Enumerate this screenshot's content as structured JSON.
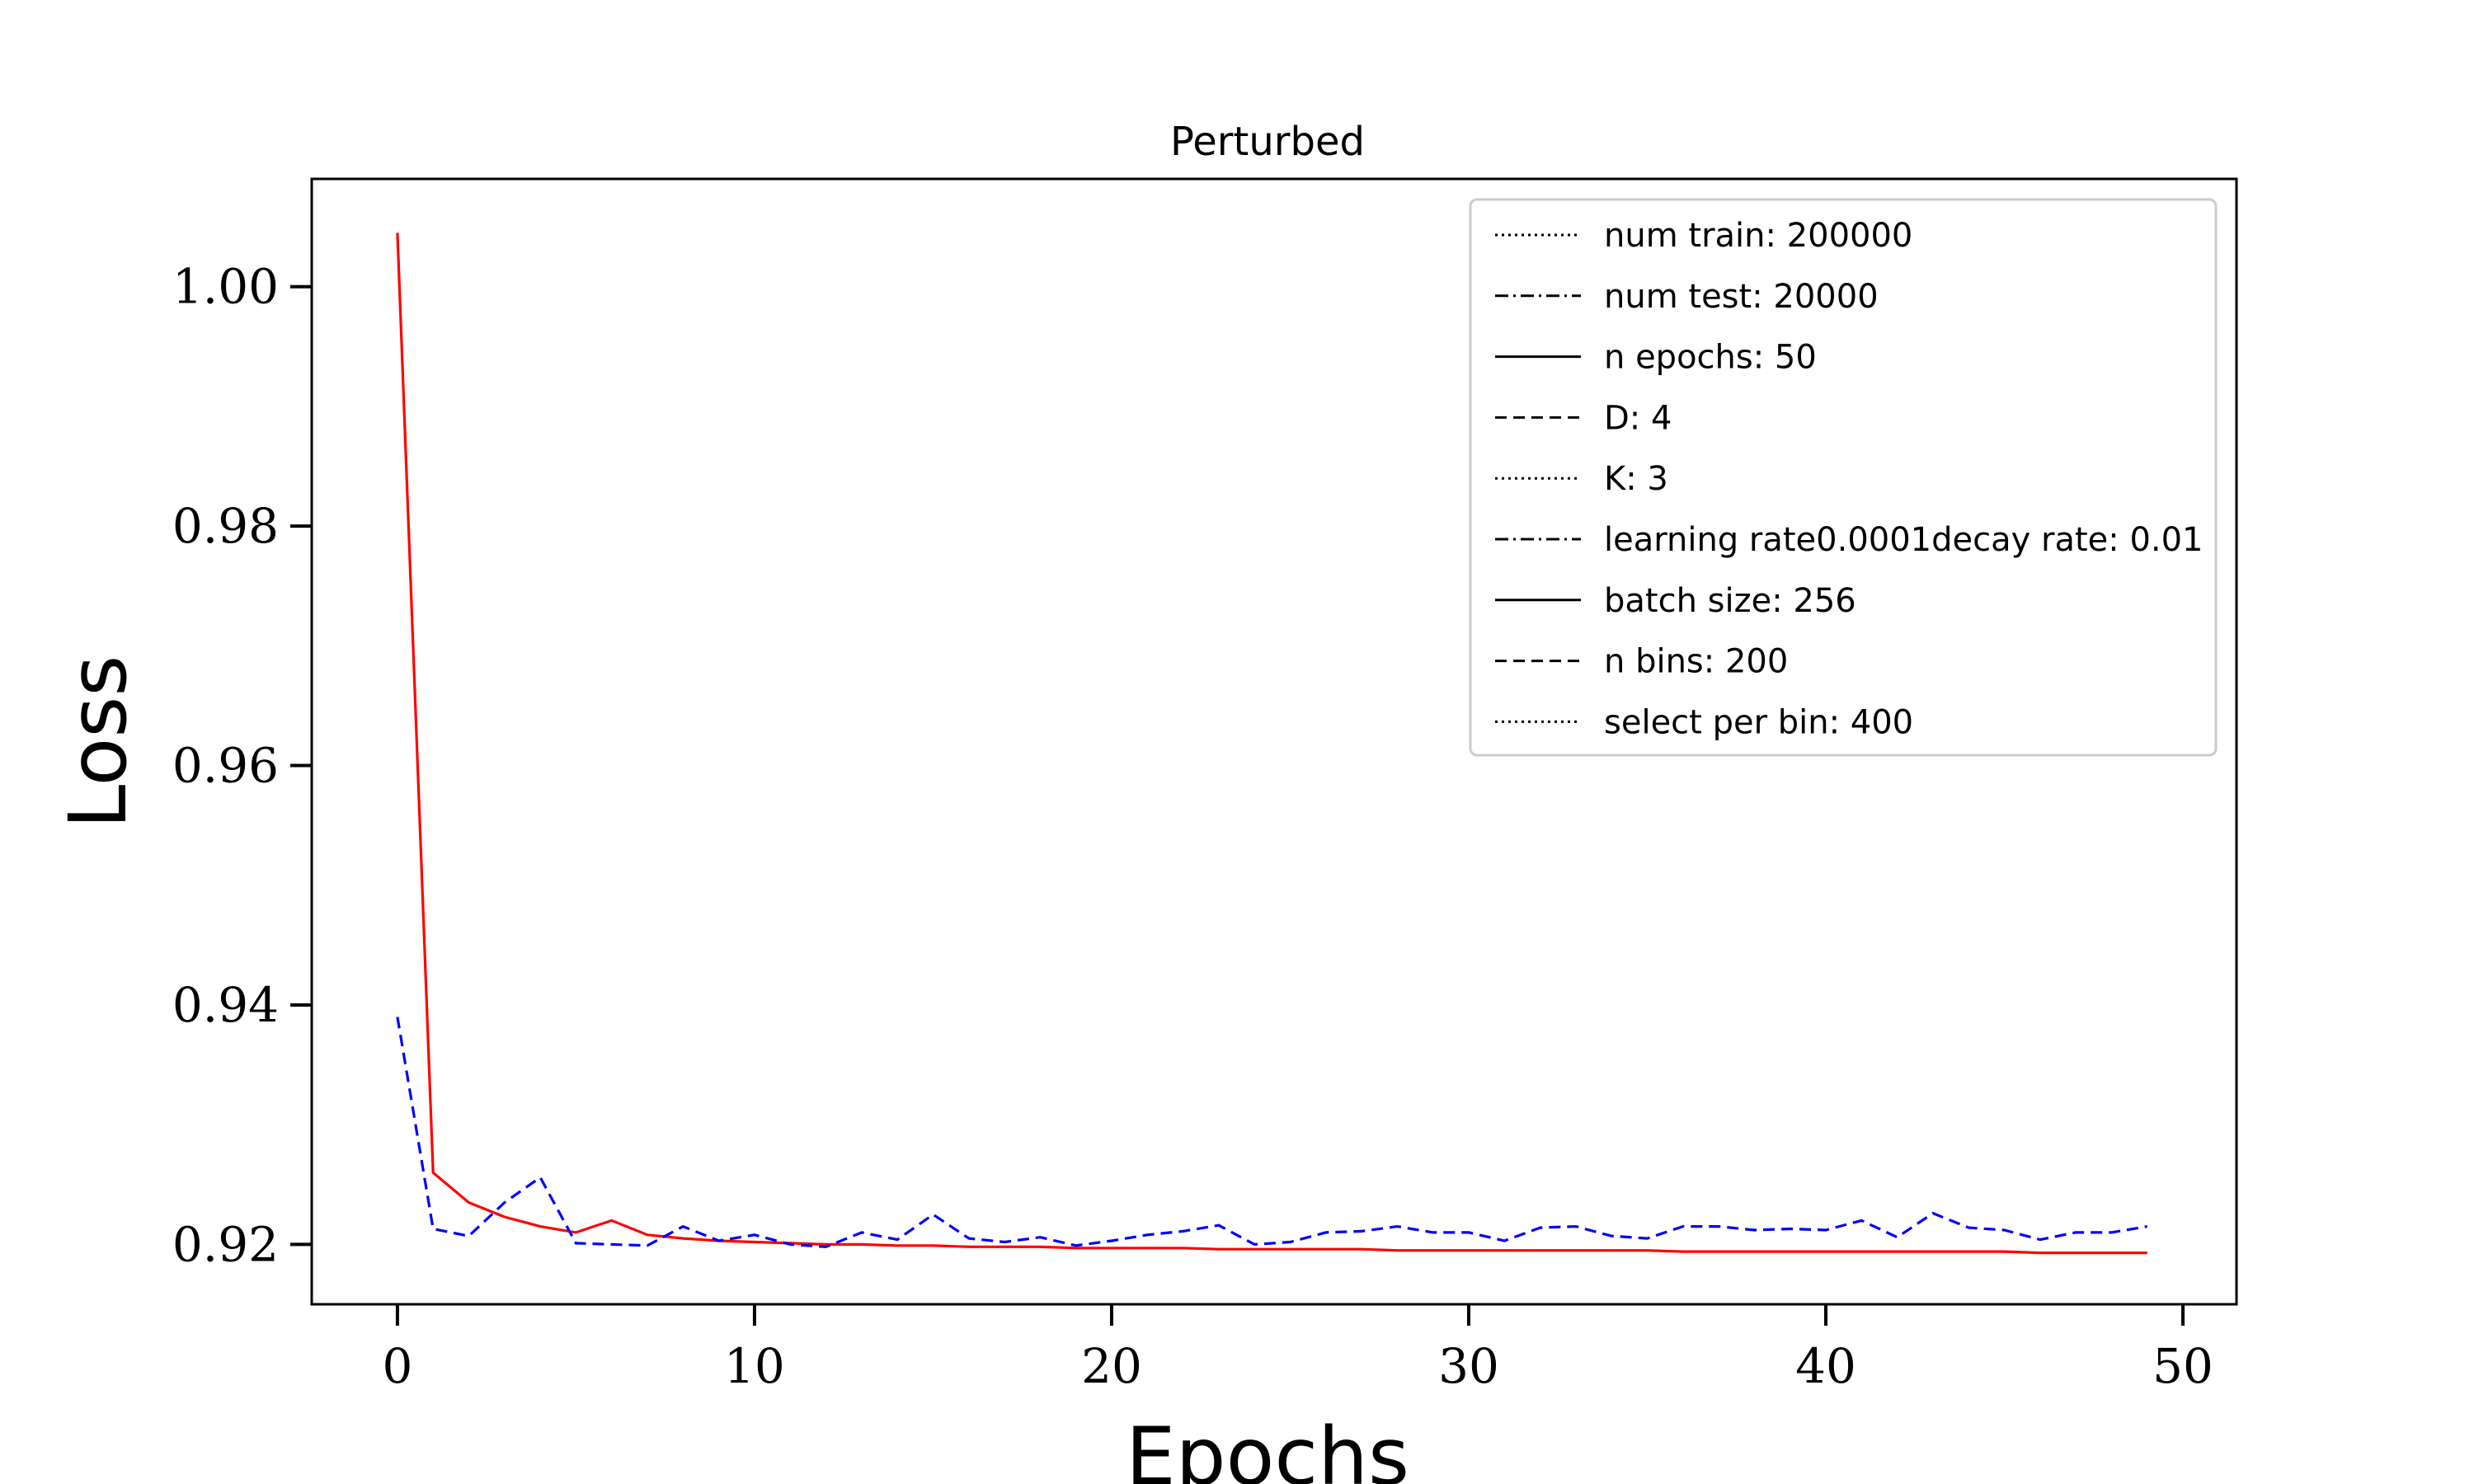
{
  "chart_data": {
    "type": "line",
    "title": "Perturbed",
    "xlabel": "Epochs",
    "ylabel": "Loss",
    "xlim": [
      -2.4,
      51.5
    ],
    "ylim": [
      0.915,
      1.009
    ],
    "xticks": [
      0,
      10,
      20,
      30,
      40,
      50
    ],
    "yticks": [
      0.92,
      0.94,
      0.96,
      0.98,
      1.0
    ],
    "xtick_labels": [
      "0",
      "10",
      "20",
      "30",
      "40",
      "50"
    ],
    "ytick_labels": [
      "0.92",
      "0.94",
      "0.96",
      "0.98",
      "1.00"
    ],
    "grid": false,
    "legend_position": "top-right",
    "series": [
      {
        "color": "#ff0000",
        "style": "solid",
        "x": [
          0,
          1,
          2,
          3,
          4,
          5,
          6,
          7,
          8,
          9,
          10,
          11,
          12,
          13,
          14,
          15,
          16,
          17,
          18,
          19,
          20,
          21,
          22,
          23,
          24,
          25,
          26,
          27,
          28,
          29,
          30,
          31,
          32,
          33,
          34,
          35,
          36,
          37,
          38,
          39,
          40,
          41,
          42,
          43,
          44,
          45,
          46,
          47,
          48,
          49
        ],
        "values": [
          1.0045,
          0.926,
          0.9235,
          0.9223,
          0.9215,
          0.921,
          0.922,
          0.9208,
          0.9205,
          0.9203,
          0.9202,
          0.9201,
          0.92,
          0.92,
          0.9199,
          0.9199,
          0.9198,
          0.9198,
          0.9198,
          0.9197,
          0.9197,
          0.9197,
          0.9197,
          0.9196,
          0.9196,
          0.9196,
          0.9196,
          0.9196,
          0.9195,
          0.9195,
          0.9195,
          0.9195,
          0.9195,
          0.9195,
          0.9195,
          0.9195,
          0.9194,
          0.9194,
          0.9194,
          0.9194,
          0.9194,
          0.9194,
          0.9194,
          0.9194,
          0.9194,
          0.9194,
          0.9193,
          0.9193,
          0.9193,
          0.9193
        ]
      },
      {
        "color": "#0000ff",
        "style": "dashed",
        "x": [
          0,
          1,
          2,
          3,
          4,
          5,
          6,
          7,
          8,
          9,
          10,
          11,
          12,
          13,
          14,
          15,
          16,
          17,
          18,
          19,
          20,
          21,
          22,
          23,
          24,
          25,
          26,
          27,
          28,
          29,
          30,
          31,
          32,
          33,
          34,
          35,
          36,
          37,
          38,
          39,
          40,
          41,
          42,
          43,
          44,
          45,
          46,
          47,
          48,
          49
        ],
        "values": [
          0.939,
          0.9213,
          0.9207,
          0.9235,
          0.9256,
          0.9201,
          0.92,
          0.9199,
          0.9215,
          0.9203,
          0.9208,
          0.92,
          0.9198,
          0.921,
          0.9204,
          0.9225,
          0.9205,
          0.9202,
          0.9206,
          0.9199,
          0.9203,
          0.9208,
          0.9211,
          0.9216,
          0.92,
          0.9202,
          0.921,
          0.9211,
          0.9215,
          0.921,
          0.921,
          0.9203,
          0.9214,
          0.9215,
          0.9207,
          0.9205,
          0.9215,
          0.9215,
          0.9212,
          0.9213,
          0.9212,
          0.922,
          0.9206,
          0.9226,
          0.9214,
          0.9212,
          0.9204,
          0.921,
          0.921,
          0.9215
        ]
      }
    ],
    "legend": [
      {
        "label": "num train: 200000",
        "style": "dotted"
      },
      {
        "label": "num test: 20000",
        "style": "dashdot"
      },
      {
        "label": "n epochs: 50",
        "style": "solid"
      },
      {
        "label": "D: 4",
        "style": "dashed"
      },
      {
        "label": "K: 3",
        "style": "dotted"
      },
      {
        "label": "learning rate0.0001decay rate: 0.01",
        "style": "dashdot"
      },
      {
        "label": "batch size: 256",
        "style": "solid"
      },
      {
        "label": "n bins: 200",
        "style": "dashed"
      },
      {
        "label": "select per bin: 400",
        "style": "dotted"
      }
    ]
  }
}
